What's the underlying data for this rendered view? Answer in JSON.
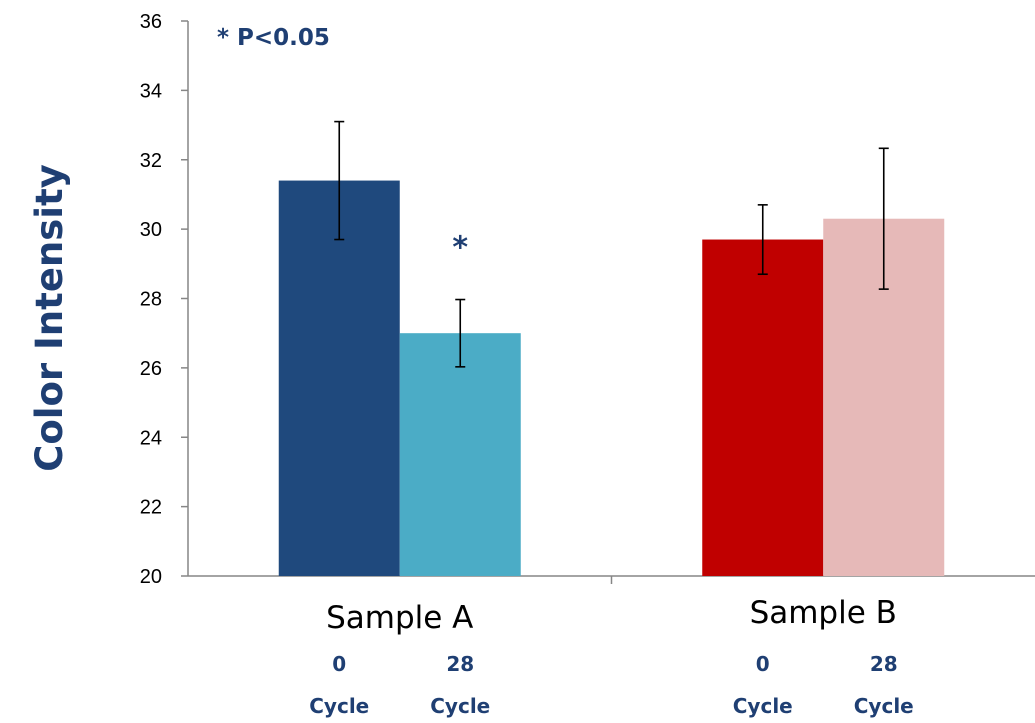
{
  "chart_data": {
    "type": "bar",
    "title": "",
    "xlabel": "",
    "ylabel": "Color Intensity",
    "ylim": [
      20,
      36
    ],
    "yticks": [
      20,
      22,
      24,
      26,
      28,
      30,
      32,
      34,
      36
    ],
    "grid": false,
    "annotation": "* P<0.05",
    "groups": [
      {
        "label": "Sample A",
        "bars": [
          {
            "sub_label": "0\nCycle",
            "value": 31.4,
            "error": 1.7,
            "color": "#1f497d",
            "significance": ""
          },
          {
            "sub_label": "28\nCycle",
            "value": 27.0,
            "error": 0.97,
            "color": "#4bacc6",
            "significance": "*"
          }
        ]
      },
      {
        "label": "Sample B",
        "bars": [
          {
            "sub_label": "0\nCycle",
            "value": 29.7,
            "error": 1.0,
            "color": "#c00000",
            "significance": ""
          },
          {
            "sub_label": "28\nCycle",
            "value": 30.3,
            "error": 2.03,
            "color": "#e6b9b8",
            "significance": ""
          }
        ]
      }
    ]
  }
}
